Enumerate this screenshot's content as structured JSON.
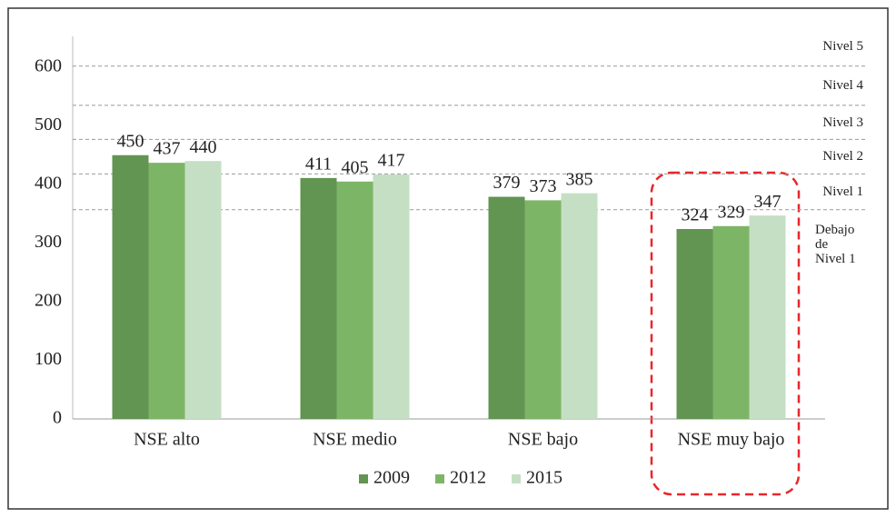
{
  "chart_data": {
    "type": "bar",
    "categories": [
      "NSE alto",
      "NSE medio",
      "NSE bajo",
      "NSE muy bajo"
    ],
    "series": [
      {
        "name": "2009",
        "color": "#629452",
        "values": [
          450,
          411,
          379,
          324
        ]
      },
      {
        "name": "2012",
        "color": "#7db567",
        "values": [
          437,
          405,
          373,
          329
        ]
      },
      {
        "name": "2015",
        "color": "#c5dfc4",
        "values": [
          440,
          417,
          385,
          347
        ]
      }
    ],
    "ylim": [
      0,
      600
    ],
    "yticks": [
      0,
      100,
      200,
      300,
      400,
      500,
      600
    ],
    "level_lines": [
      357,
      418,
      477,
      535,
      602
    ],
    "level_labels": [
      "Debajo de Nivel 1",
      "Nivel 1",
      "Nivel 2",
      "Nivel 3",
      "Nivel 4",
      "Nivel 5"
    ],
    "legend": "bottom"
  }
}
